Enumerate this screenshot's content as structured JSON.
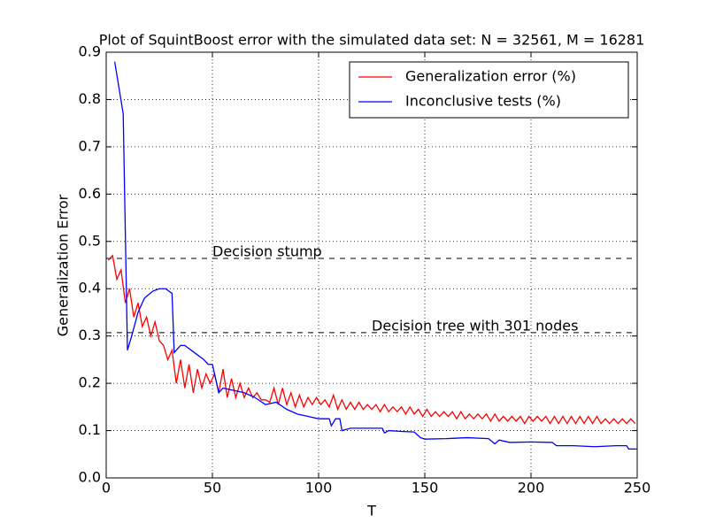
{
  "chart_data": {
    "type": "line",
    "title": "Plot of SquintBoost error with the simulated data set: N = 32561, M = 16281",
    "x_label": "T",
    "y_label": "Generalization Error",
    "xlim": [
      0,
      250
    ],
    "xticks": [
      0,
      50,
      100,
      150,
      200,
      250
    ],
    "ylim": [
      0,
      0.9
    ],
    "yticks": [
      {
        "value": 0,
        "label": "0.0"
      },
      0.1,
      0.2,
      0.3,
      0.4,
      0.5,
      0.6,
      0.7,
      0.8,
      0.9
    ],
    "grid": true,
    "legend": "upper right",
    "series": [
      {
        "name": "Generalization error (%)",
        "color": "#ff0000",
        "x": [
          1,
          3,
          5,
          7,
          9,
          11,
          13,
          15,
          17,
          19,
          21,
          23,
          25,
          27,
          29,
          31,
          33,
          35,
          37,
          39,
          41,
          43,
          45,
          47,
          49,
          51,
          53,
          55,
          57,
          59,
          61,
          63,
          65,
          67,
          69,
          71,
          73,
          75,
          77,
          79,
          81,
          83,
          85,
          87,
          89,
          91,
          93,
          95,
          97,
          99,
          101,
          103,
          105,
          107,
          109,
          111,
          113,
          115,
          117,
          119,
          121,
          123,
          125,
          127,
          129,
          131,
          133,
          135,
          137,
          139,
          141,
          143,
          145,
          147,
          149,
          151,
          153,
          155,
          157,
          159,
          161,
          163,
          165,
          167,
          169,
          171,
          173,
          175,
          177,
          179,
          181,
          183,
          185,
          187,
          189,
          191,
          193,
          195,
          197,
          199,
          201,
          203,
          205,
          207,
          209,
          211,
          213,
          215,
          217,
          219,
          221,
          223,
          225,
          227,
          229,
          231,
          233,
          235,
          237,
          239,
          241,
          243,
          245,
          247,
          249
        ],
        "values": [
          0.46,
          0.47,
          0.42,
          0.44,
          0.37,
          0.4,
          0.34,
          0.37,
          0.32,
          0.34,
          0.3,
          0.33,
          0.29,
          0.28,
          0.25,
          0.27,
          0.2,
          0.25,
          0.19,
          0.24,
          0.18,
          0.23,
          0.19,
          0.22,
          0.2,
          0.22,
          0.18,
          0.23,
          0.17,
          0.21,
          0.17,
          0.2,
          0.17,
          0.19,
          0.17,
          0.18,
          0.165,
          0.165,
          0.16,
          0.19,
          0.155,
          0.19,
          0.155,
          0.18,
          0.15,
          0.175,
          0.15,
          0.17,
          0.155,
          0.17,
          0.155,
          0.165,
          0.15,
          0.175,
          0.145,
          0.165,
          0.145,
          0.16,
          0.145,
          0.16,
          0.145,
          0.155,
          0.145,
          0.155,
          0.14,
          0.155,
          0.14,
          0.15,
          0.14,
          0.15,
          0.135,
          0.15,
          0.135,
          0.145,
          0.13,
          0.145,
          0.13,
          0.14,
          0.13,
          0.14,
          0.13,
          0.14,
          0.125,
          0.14,
          0.125,
          0.135,
          0.125,
          0.135,
          0.125,
          0.135,
          0.12,
          0.135,
          0.12,
          0.13,
          0.12,
          0.13,
          0.12,
          0.13,
          0.115,
          0.13,
          0.12,
          0.13,
          0.12,
          0.13,
          0.115,
          0.13,
          0.115,
          0.13,
          0.115,
          0.13,
          0.115,
          0.13,
          0.115,
          0.13,
          0.115,
          0.13,
          0.115,
          0.125,
          0.115,
          0.125,
          0.115,
          0.125,
          0.115,
          0.125,
          0.115
        ]
      },
      {
        "name": "Inconclusive tests (%)",
        "color": "#0000ff",
        "x": [
          4,
          8,
          10,
          12,
          15,
          18,
          22,
          25,
          28,
          31,
          32,
          35,
          37,
          40,
          43,
          46,
          48,
          50,
          53,
          55,
          60,
          65,
          70,
          75,
          80,
          85,
          90,
          95,
          100,
          105,
          106,
          108,
          110,
          111,
          115,
          120,
          125,
          130,
          131,
          133,
          140,
          145,
          148,
          150,
          160,
          170,
          180,
          183,
          185,
          190,
          200,
          210,
          212,
          220,
          230,
          240,
          245,
          246,
          250
        ],
        "values": [
          0.88,
          0.77,
          0.27,
          0.3,
          0.35,
          0.38,
          0.395,
          0.4,
          0.4,
          0.39,
          0.265,
          0.28,
          0.28,
          0.27,
          0.26,
          0.25,
          0.24,
          0.24,
          0.18,
          0.19,
          0.185,
          0.18,
          0.17,
          0.155,
          0.16,
          0.145,
          0.135,
          0.13,
          0.125,
          0.125,
          0.11,
          0.125,
          0.125,
          0.1,
          0.105,
          0.105,
          0.105,
          0.105,
          0.095,
          0.1,
          0.098,
          0.097,
          0.085,
          0.082,
          0.083,
          0.085,
          0.083,
          0.072,
          0.08,
          0.075,
          0.076,
          0.075,
          0.068,
          0.068,
          0.066,
          0.068,
          0.068,
          0.061,
          0.061
        ]
      }
    ],
    "hlines": [
      {
        "y": 0.464,
        "label": "Decision stump",
        "x": 50
      },
      {
        "y": 0.307,
        "label": "Decision tree with 301 nodes",
        "x": 125
      }
    ]
  }
}
